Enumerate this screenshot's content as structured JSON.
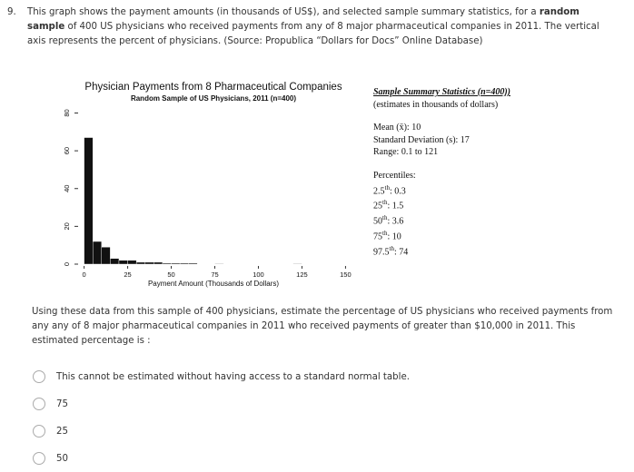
{
  "question": {
    "number": "9.",
    "intro_before": "This graph shows the payment amounts (in thousands of US$), and selected sample summary statistics, for a",
    "intro_bold": "random sample",
    "intro_after": "of 400 US physicians who received payments from any of 8 major pharmaceutical companies in 2011.  The vertical axis represents the percent of physicians. (Source: Propublica “Dollars for Docs” Online Database)"
  },
  "chart_data": {
    "type": "histogram",
    "title": "Physician Payments from 8 Pharmaceutical Companies",
    "subtitle": "Random Sample of US Physicians, 2011 (n=400)",
    "xlabel": "Payment Amount (Thousands of Dollars)",
    "bins": [
      0,
      5,
      10,
      15,
      20,
      25,
      30,
      35,
      40,
      45,
      50,
      55,
      60,
      65,
      70,
      75,
      80,
      85,
      90,
      95,
      100,
      105,
      110,
      115,
      120,
      125,
      130,
      135,
      140,
      145,
      150
    ],
    "counts": [
      67,
      12,
      9,
      3,
      2,
      2,
      1,
      1,
      1,
      0.5,
      0.5,
      0.5,
      0.5,
      0,
      0,
      0.25,
      0,
      0,
      0,
      0,
      0,
      0,
      0,
      0,
      0.25,
      0,
      0,
      0,
      0,
      0
    ],
    "color": "#111111",
    "xlim": [
      -5,
      155
    ],
    "ylim": [
      0,
      86
    ],
    "xticks": [
      0,
      25,
      50,
      75,
      100,
      125,
      150
    ],
    "yticks": [
      0,
      20,
      40,
      60,
      80
    ]
  },
  "stats": {
    "title": "Sample Summary Statistics (n=400))",
    "subtitle": "(estimates in thousands of dollars)",
    "lines": [
      "Mean (x̄): 10",
      "Standard Deviation (s): 17",
      "Range: 0.1 to 121"
    ],
    "percentiles_title": "Percentiles:",
    "percentiles": [
      {
        "label": "2.5",
        "sup": "th",
        "value": ": 0.3"
      },
      {
        "label": "25",
        "sup": "th",
        "value": ":  1.5"
      },
      {
        "label": "50",
        "sup": "th",
        "value": ":  3.6"
      },
      {
        "label": "75",
        "sup": "th",
        "value": ":  10"
      },
      {
        "label": "97.5",
        "sup": "th",
        "value": ":  74"
      }
    ]
  },
  "prompt": "Using these data from this sample of 400 physicians, estimate the percentage of US physicians who received payments from any any of 8 major pharmaceutical companies in 2011 who received payments of greater than $10,000 in 2011.  This estimated percentage is :",
  "options": [
    "This cannot be estimated without having access to a standard normal table.",
    "75",
    "25",
    "50"
  ]
}
